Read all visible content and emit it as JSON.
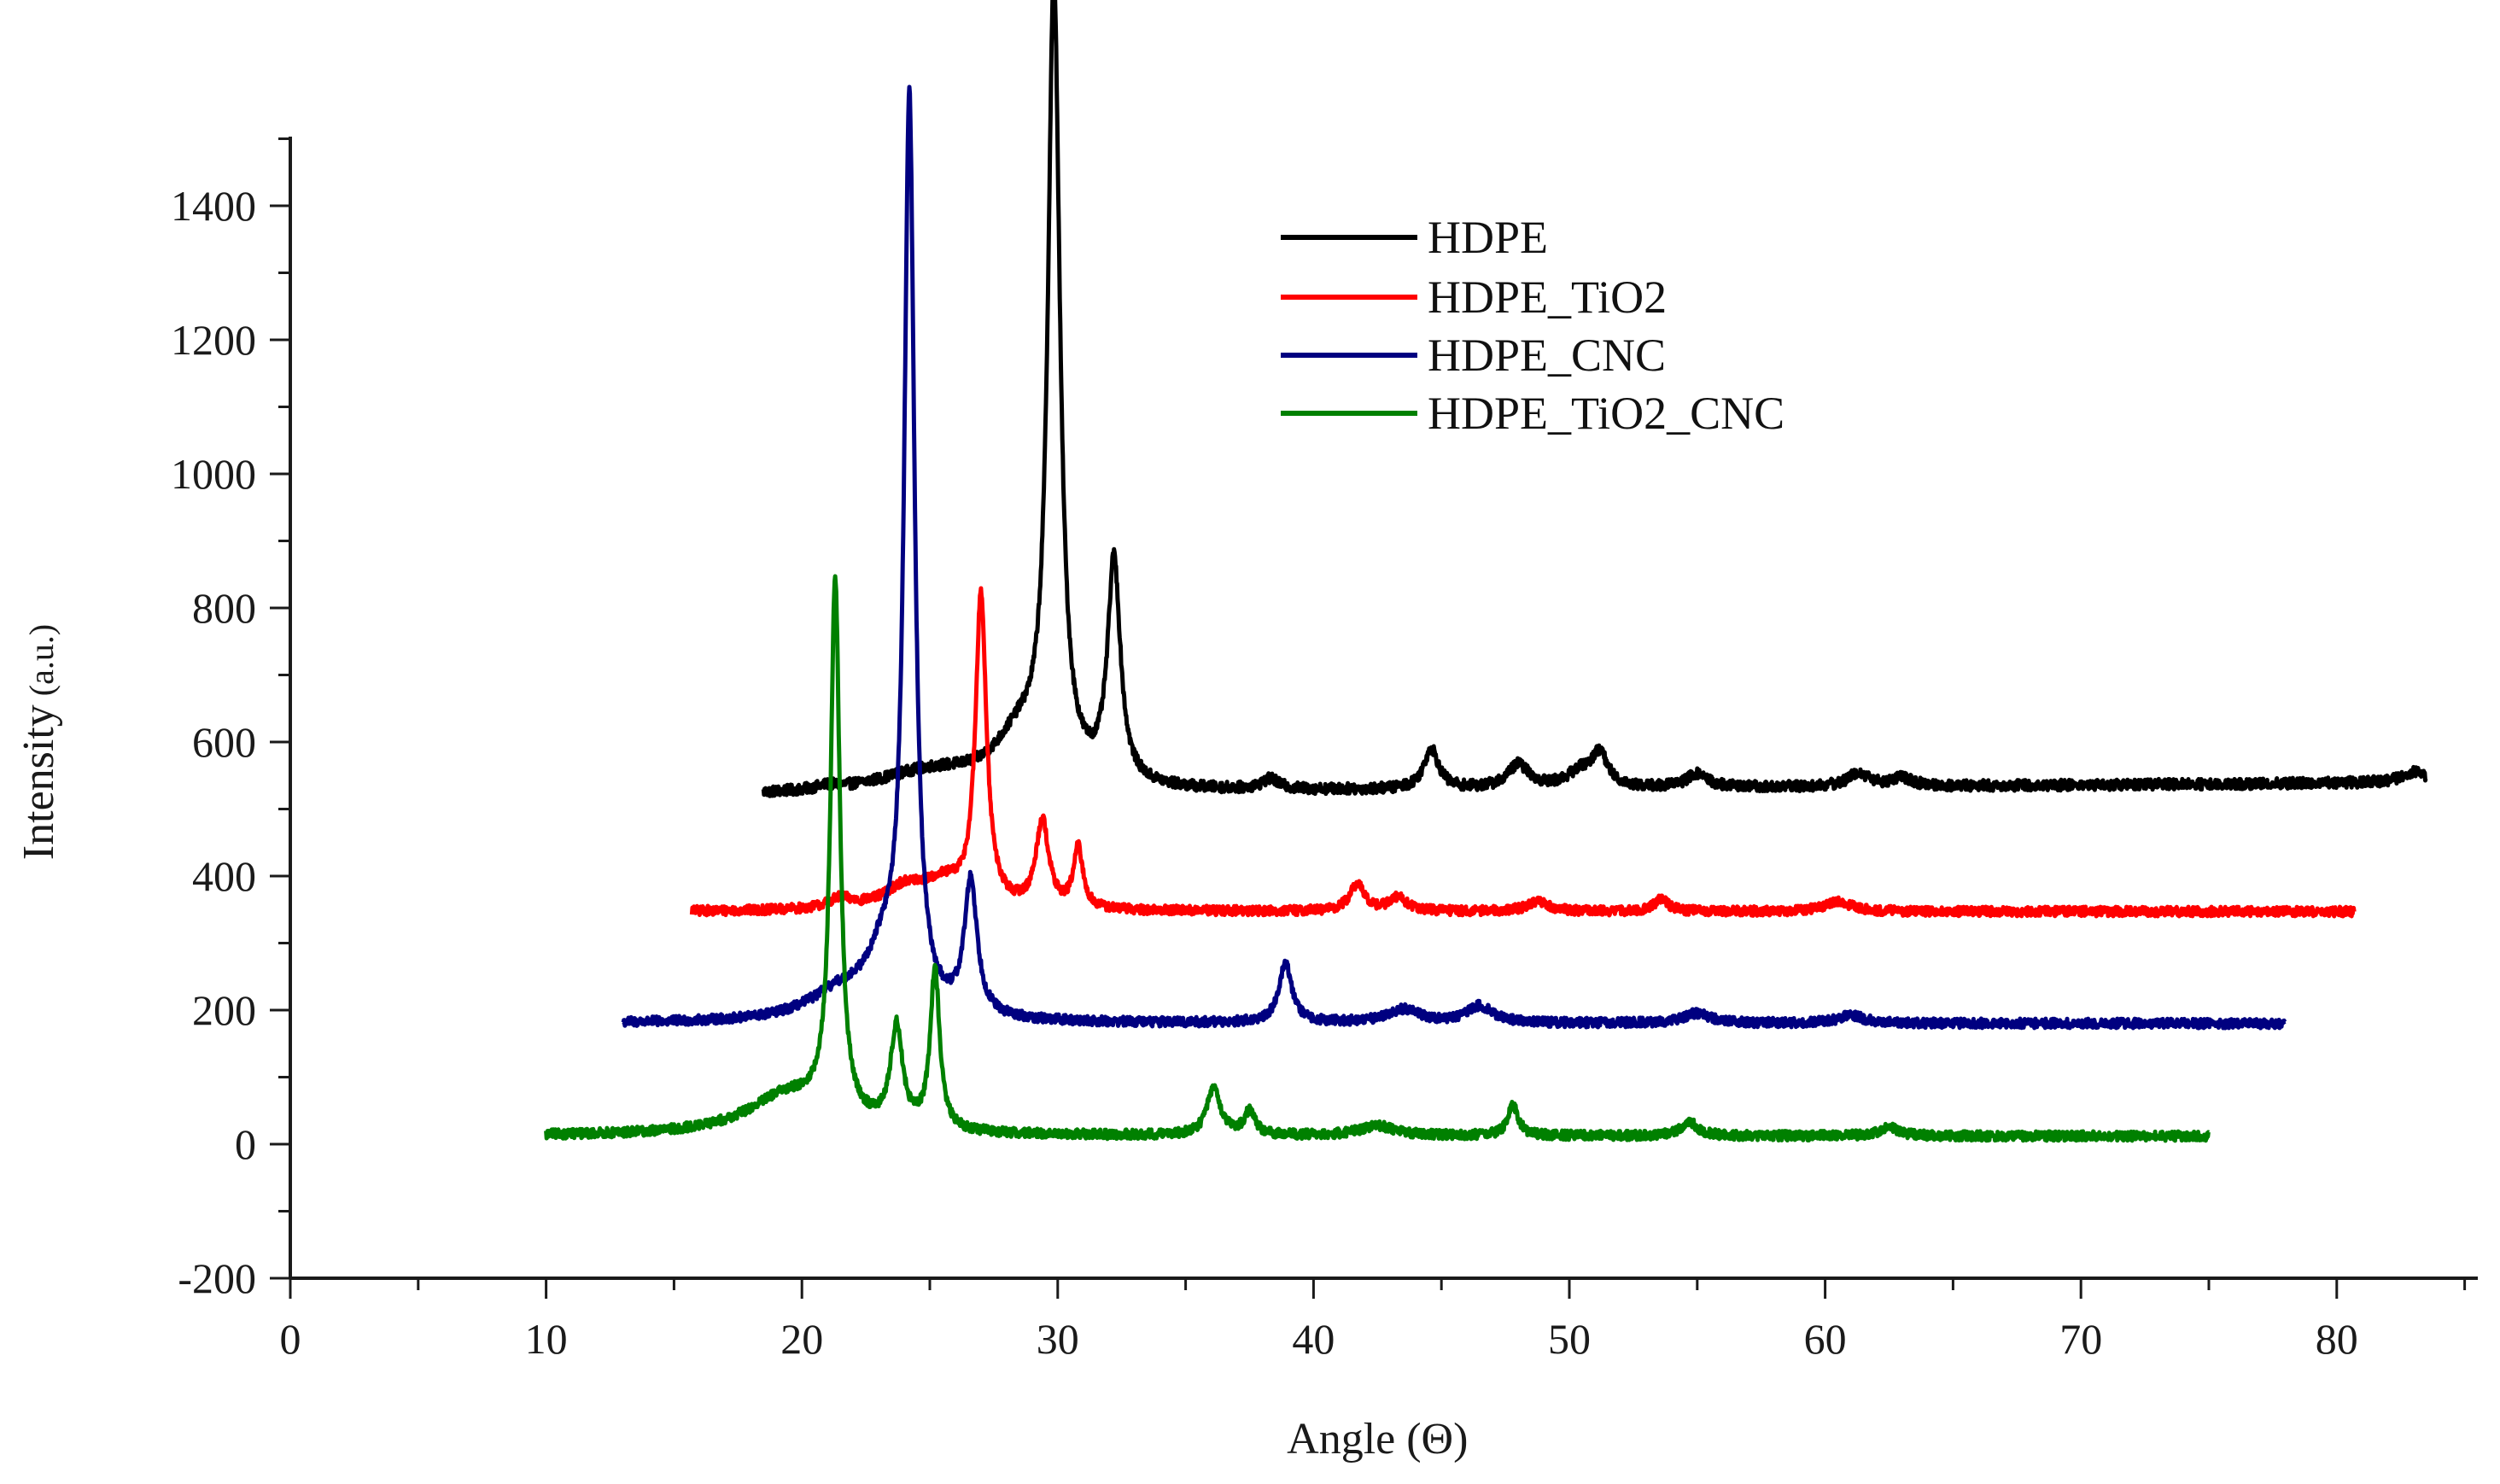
{
  "chart_data": {
    "type": "line",
    "title": "",
    "xlabel": "Angle (Θ)",
    "ylabel": "Intensity (a.u.)",
    "ylabel_main": "Intensity",
    "ylabel_unit": " (a.u.)",
    "xlim": [
      0,
      85
    ],
    "ylim": [
      -200,
      1500
    ],
    "x_ticks": [
      0,
      10,
      20,
      30,
      40,
      50,
      60,
      70,
      80
    ],
    "x_tick_labels": [
      "0",
      "10",
      "20",
      "30",
      "40",
      "50",
      "60",
      "70",
      "80"
    ],
    "y_ticks": [
      -200,
      0,
      200,
      400,
      600,
      800,
      1000,
      1200,
      1400
    ],
    "y_tick_labels": [
      "-200",
      "0",
      "200",
      "400",
      "600",
      "800",
      "1000",
      "1200",
      "1400"
    ],
    "grid": false,
    "legend_position": "top-right",
    "series": [
      {
        "name": "HDPE",
        "color": "#000000",
        "x_range": [
          18.5,
          83.5
        ],
        "baseline": 520,
        "slope": 0.3,
        "peaks": [
          [
            21.0,
            5,
            0.5
          ],
          [
            25.0,
            30,
            2.5
          ],
          [
            28.5,
            70,
            1.2
          ],
          [
            29.85,
            1180,
            0.28
          ],
          [
            32.2,
            330,
            0.3
          ],
          [
            38.3,
            15,
            0.4
          ],
          [
            44.6,
            60,
            0.35
          ],
          [
            48.0,
            35,
            0.5
          ],
          [
            50.5,
            25,
            0.7
          ],
          [
            51.2,
            45,
            0.35
          ],
          [
            55.0,
            20,
            0.5
          ],
          [
            61.3,
            20,
            0.5
          ],
          [
            63.0,
            12,
            0.5
          ],
          [
            83.0,
            15,
            0.6
          ]
        ],
        "noise": 8
      },
      {
        "name": "HDPE_TiO2",
        "color": "#ff0000",
        "x_range": [
          15.7,
          80.7
        ],
        "baseline": 347,
        "slope": 0.0,
        "peaks": [
          [
            21.5,
            15,
            0.6
          ],
          [
            24.0,
            30,
            1.0
          ],
          [
            25.5,
            35,
            1.0
          ],
          [
            27.0,
            460,
            0.26
          ],
          [
            29.4,
            130,
            0.3
          ],
          [
            30.8,
            90,
            0.22
          ],
          [
            41.7,
            40,
            0.35
          ],
          [
            43.3,
            20,
            0.4
          ],
          [
            48.8,
            15,
            0.5
          ],
          [
            53.6,
            20,
            0.3
          ],
          [
            60.5,
            15,
            0.6
          ]
        ],
        "noise": 7
      },
      {
        "name": "HDPE_CNC",
        "color": "#000080",
        "x_range": [
          13.0,
          78.0
        ],
        "baseline": 180,
        "slope": 0.0,
        "peaks": [
          [
            21.5,
            40,
            1.6
          ],
          [
            23.2,
            80,
            0.8
          ],
          [
            24.2,
            1350,
            0.24
          ],
          [
            26.6,
            200,
            0.3
          ],
          [
            38.9,
            90,
            0.3
          ],
          [
            43.5,
            20,
            0.8
          ],
          [
            46.5,
            25,
            0.6
          ],
          [
            55.0,
            15,
            0.6
          ],
          [
            61.0,
            12,
            0.6
          ]
        ],
        "noise": 7
      },
      {
        "name": "HDPE_TiO2_CNC",
        "color": "#008000",
        "x_range": [
          10.0,
          75.0
        ],
        "baseline": 12,
        "slope": 0.0,
        "peaks": [
          [
            19.5,
            60,
            2.0
          ],
          [
            21.3,
            800,
            0.22
          ],
          [
            23.7,
            150,
            0.28
          ],
          [
            25.2,
            240,
            0.22
          ],
          [
            36.1,
            70,
            0.32
          ],
          [
            37.5,
            35,
            0.25
          ],
          [
            42.5,
            15,
            0.8
          ],
          [
            47.8,
            45,
            0.25
          ],
          [
            54.7,
            20,
            0.4
          ],
          [
            62.5,
            15,
            0.4
          ]
        ],
        "noise": 7
      }
    ]
  }
}
